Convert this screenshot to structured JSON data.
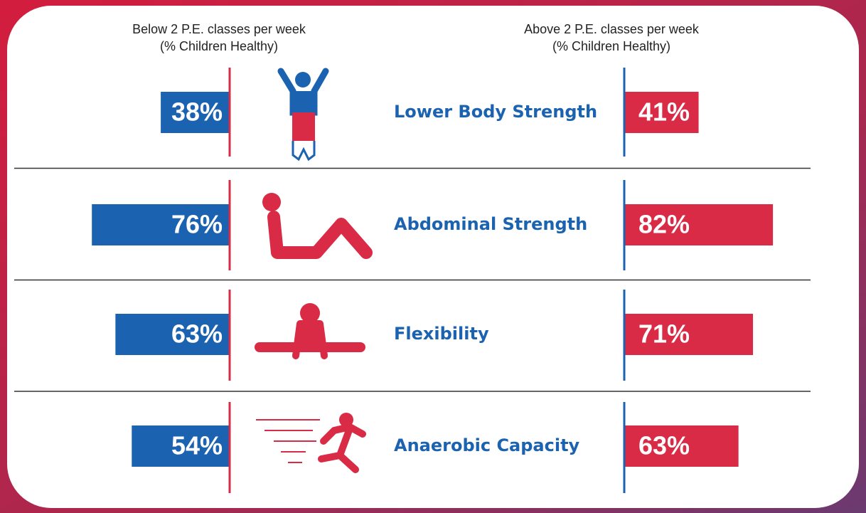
{
  "chart_data": {
    "type": "bar",
    "categories": [
      "Lower Body Strength",
      "Abdominal Strength",
      "Flexibility",
      "Anaerobic Capacity"
    ],
    "series": [
      {
        "name": "Below 2 P.E. classes per week",
        "subtitle": "(% Children Healthy)",
        "color": "#1b63b0",
        "values": [
          38,
          76,
          63,
          54
        ],
        "value_labels": [
          "38%",
          "76%",
          "63%",
          "54%"
        ]
      },
      {
        "name": "Above 2 P.E. classes per week",
        "subtitle": "(% Children Healthy)",
        "color": "#d92b45",
        "values": [
          41,
          82,
          71,
          63
        ],
        "value_labels": [
          "41%",
          "82%",
          "71%",
          "63%"
        ]
      }
    ]
  }
}
